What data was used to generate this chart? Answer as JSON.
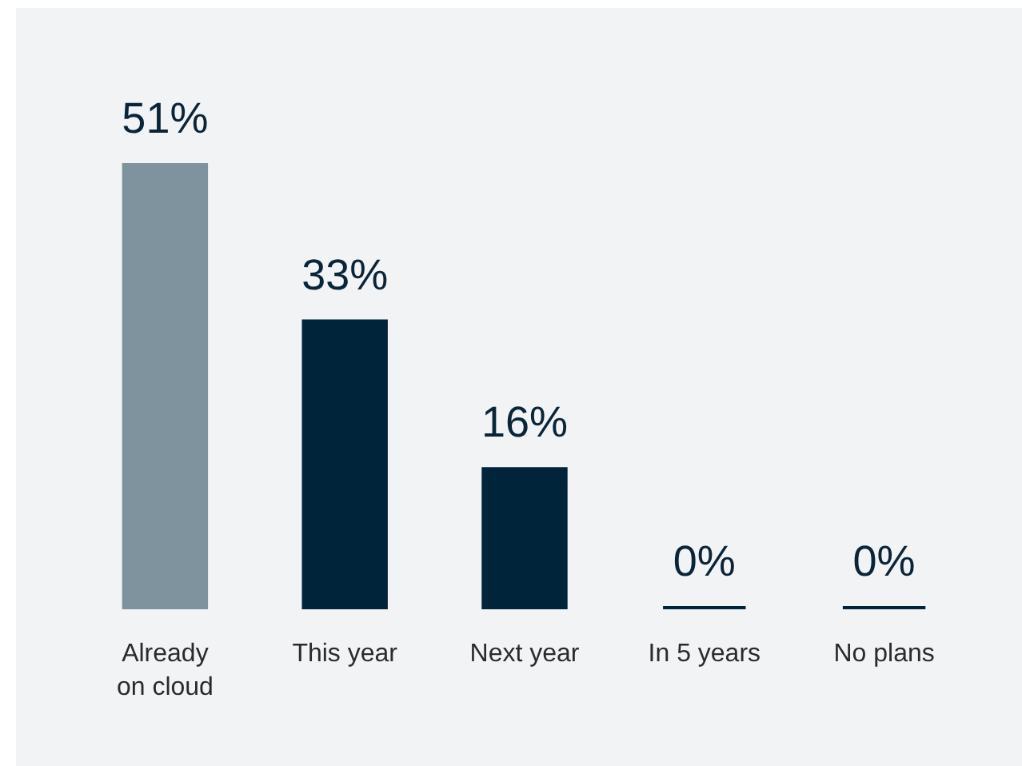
{
  "chart_data": {
    "type": "bar",
    "categories": [
      "Already on cloud",
      "This year",
      "Next year",
      "In 5 years",
      "No plans"
    ],
    "values": [
      51,
      33,
      16,
      0,
      0
    ],
    "value_labels": [
      "51%",
      "33%",
      "16%",
      "0%",
      "0%"
    ],
    "colors": [
      "#7f939e",
      "#00243a",
      "#00243a",
      "#00243a",
      "#00243a"
    ]
  }
}
